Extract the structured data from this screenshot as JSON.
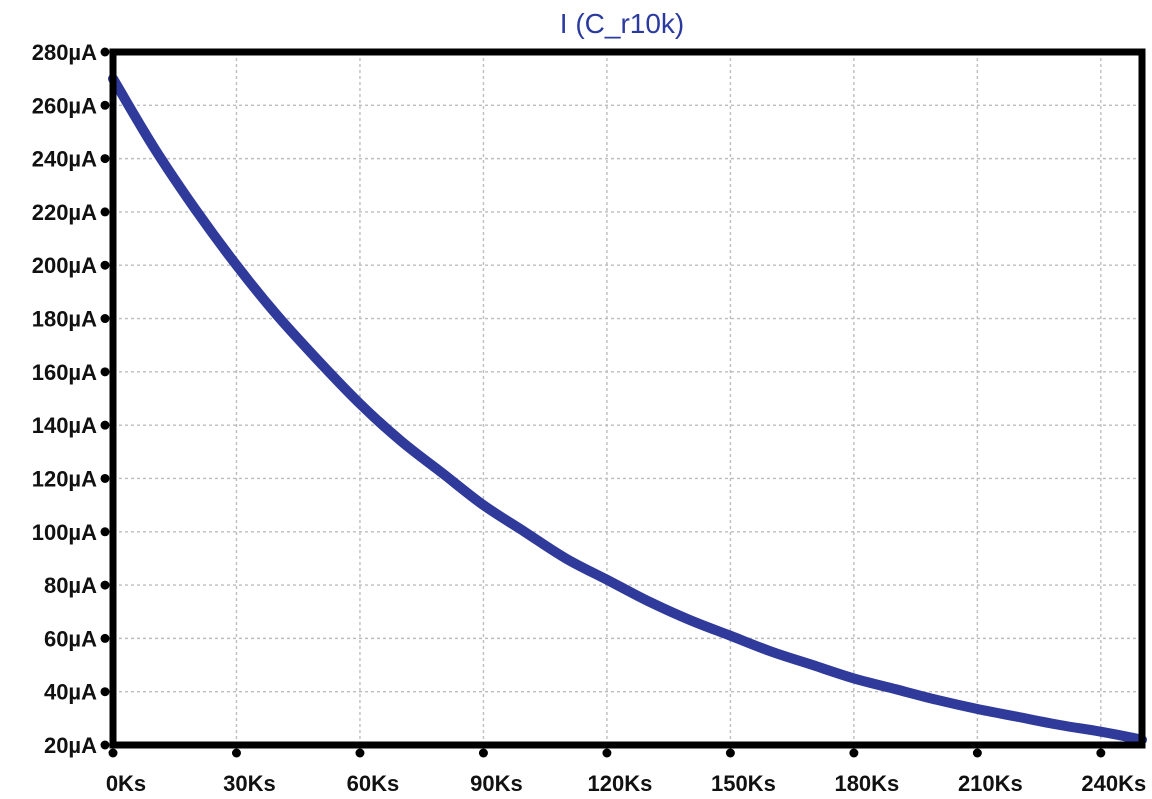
{
  "chart_data": {
    "type": "line",
    "title": "I (C_r10k)",
    "xlabel": "",
    "ylabel": "",
    "xlim": [
      0,
      250000
    ],
    "ylim": [
      20,
      280
    ],
    "grid": true,
    "x_ticks": [
      {
        "value": 0,
        "label": "0Ks"
      },
      {
        "value": 30000,
        "label": "30Ks"
      },
      {
        "value": 60000,
        "label": "60Ks"
      },
      {
        "value": 90000,
        "label": "90Ks"
      },
      {
        "value": 120000,
        "label": "120Ks"
      },
      {
        "value": 150000,
        "label": "150Ks"
      },
      {
        "value": 180000,
        "label": "180Ks"
      },
      {
        "value": 210000,
        "label": "210Ks"
      },
      {
        "value": 240000,
        "label": "240Ks"
      }
    ],
    "y_ticks": [
      {
        "value": 280,
        "label": "280µA"
      },
      {
        "value": 260,
        "label": "260µA"
      },
      {
        "value": 240,
        "label": "240µA"
      },
      {
        "value": 220,
        "label": "220µA"
      },
      {
        "value": 200,
        "label": "200µA"
      },
      {
        "value": 180,
        "label": "180µA"
      },
      {
        "value": 160,
        "label": "160µA"
      },
      {
        "value": 140,
        "label": "140µA"
      },
      {
        "value": 120,
        "label": "120µA"
      },
      {
        "value": 100,
        "label": "100µA"
      },
      {
        "value": 80,
        "label": "80µA"
      },
      {
        "value": 60,
        "label": "60µA"
      },
      {
        "value": 40,
        "label": "40µA"
      },
      {
        "value": 20,
        "label": "20µA"
      }
    ],
    "series": [
      {
        "color": "#2f3a9a",
        "x": [
          0,
          10000,
          20000,
          30000,
          40000,
          50000,
          60000,
          70000,
          80000,
          90000,
          100000,
          110000,
          120000,
          130000,
          140000,
          150000,
          160000,
          170000,
          180000,
          190000,
          200000,
          210000,
          220000,
          230000,
          240000,
          250000
        ],
        "y": [
          270,
          244,
          221,
          200,
          181,
          164,
          148,
          134,
          122,
          110,
          100,
          90,
          82,
          74,
          67,
          61,
          55,
          50,
          45,
          41,
          37,
          33.5,
          30.5,
          27.5,
          25,
          22
        ]
      }
    ]
  }
}
